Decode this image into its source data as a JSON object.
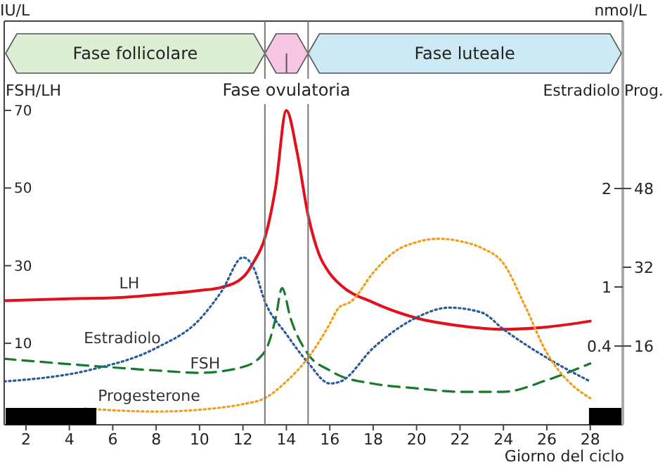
{
  "chart_data": {
    "type": "line",
    "xlabel": "Giorno del ciclo",
    "ylabel": "FSH/LH",
    "y2label": "Prog.",
    "y3label": "Estradiolo",
    "annotations": [
      "IU/L",
      "nmol/L"
    ],
    "xlim": [
      1,
      29.5
    ],
    "xticks": [
      2,
      4,
      6,
      8,
      10,
      12,
      14,
      16,
      18,
      20,
      22,
      24,
      26,
      28
    ],
    "ylim": [
      -11,
      93
    ],
    "yticks": [
      10,
      30,
      50,
      70
    ],
    "y2lim": [
      0,
      82
    ],
    "y2ticks": [
      16,
      32,
      48
    ],
    "y3lim": [
      -0.4,
      3.7
    ],
    "y3ticks": [
      0.4,
      1,
      2
    ],
    "marker": "none",
    "bands": [
      {
        "axis": "x",
        "from": 1,
        "to": 13,
        "label": "Fase follicolare",
        "color": "#dcefd4"
      },
      {
        "axis": "x",
        "from": 13,
        "to": 15,
        "label": "Fase ovulatoria",
        "color": "#f7c6e4"
      },
      {
        "axis": "x",
        "from": 15,
        "to": 29.5,
        "label": "Fase luteale",
        "color": "#cdeaf4"
      },
      {
        "axis": "x",
        "from": 1,
        "to": 5.2,
        "color": "#000000"
      },
      {
        "axis": "x",
        "from": 28,
        "to": 29.5,
        "color": "#000000"
      }
    ],
    "series": [
      {
        "name": "LH",
        "color": "#e3101c",
        "line_style": "solid",
        "x": [
          1,
          4,
          6,
          8,
          10,
          11,
          12,
          12.5,
          13,
          13.5,
          14,
          14.5,
          15,
          15.5,
          16,
          16.5,
          18,
          20,
          22,
          24,
          26,
          28
        ],
        "values": [
          21,
          21.5,
          21.7,
          22.5,
          23.6,
          24.4,
          27,
          31,
          37,
          50,
          70,
          59,
          43,
          33,
          28,
          25,
          20.5,
          16.5,
          14.5,
          13.6,
          14.2,
          15.7
        ]
      },
      {
        "name": "FSH",
        "color": "#17792b",
        "line_style": "dashed",
        "x": [
          1,
          5,
          8,
          10,
          12,
          13,
          13.5,
          13.8,
          14.2,
          15,
          16,
          16.4,
          18,
          20,
          22,
          24,
          26,
          28
        ],
        "values": [
          6,
          4.2,
          3,
          2.4,
          3.9,
          7.8,
          16.3,
          24.2,
          16.3,
          7.2,
          3,
          1.8,
          -0.4,
          -1.6,
          -2.5,
          -2.5,
          0.5,
          4.8
        ]
      },
      {
        "name": "Estradiolo",
        "color": "#2a5a9e",
        "line_style": "dotted",
        "axis": "y3",
        "x": [
          1,
          5,
          8,
          10,
          11,
          12,
          12.5,
          13,
          14,
          15,
          16,
          16.5,
          18,
          20,
          21.5,
          23,
          24,
          26,
          28
        ],
        "values": [
          0.04,
          0.16,
          0.38,
          0.67,
          0.95,
          1.3,
          1.19,
          0.86,
          0.52,
          0.23,
          0.02,
          0.04,
          0.38,
          0.69,
          0.79,
          0.74,
          0.57,
          0.28,
          0.04
        ]
      },
      {
        "name": "Progesterone",
        "color": "#f29d1a",
        "line_style": "dotted",
        "axis": "y2",
        "x": [
          4.7,
          8,
          11,
          12,
          13,
          14,
          15,
          16,
          16.4,
          17,
          18,
          19,
          20,
          21,
          22,
          23,
          24,
          25,
          26,
          27,
          28
        ],
        "values": [
          3.3,
          2.7,
          3.5,
          4.2,
          5.4,
          8.8,
          13.6,
          20.5,
          23.7,
          25.1,
          30.9,
          35.2,
          37.1,
          37.8,
          37.3,
          35.9,
          32.8,
          24.1,
          14.6,
          8.8,
          5.4
        ]
      }
    ]
  }
}
